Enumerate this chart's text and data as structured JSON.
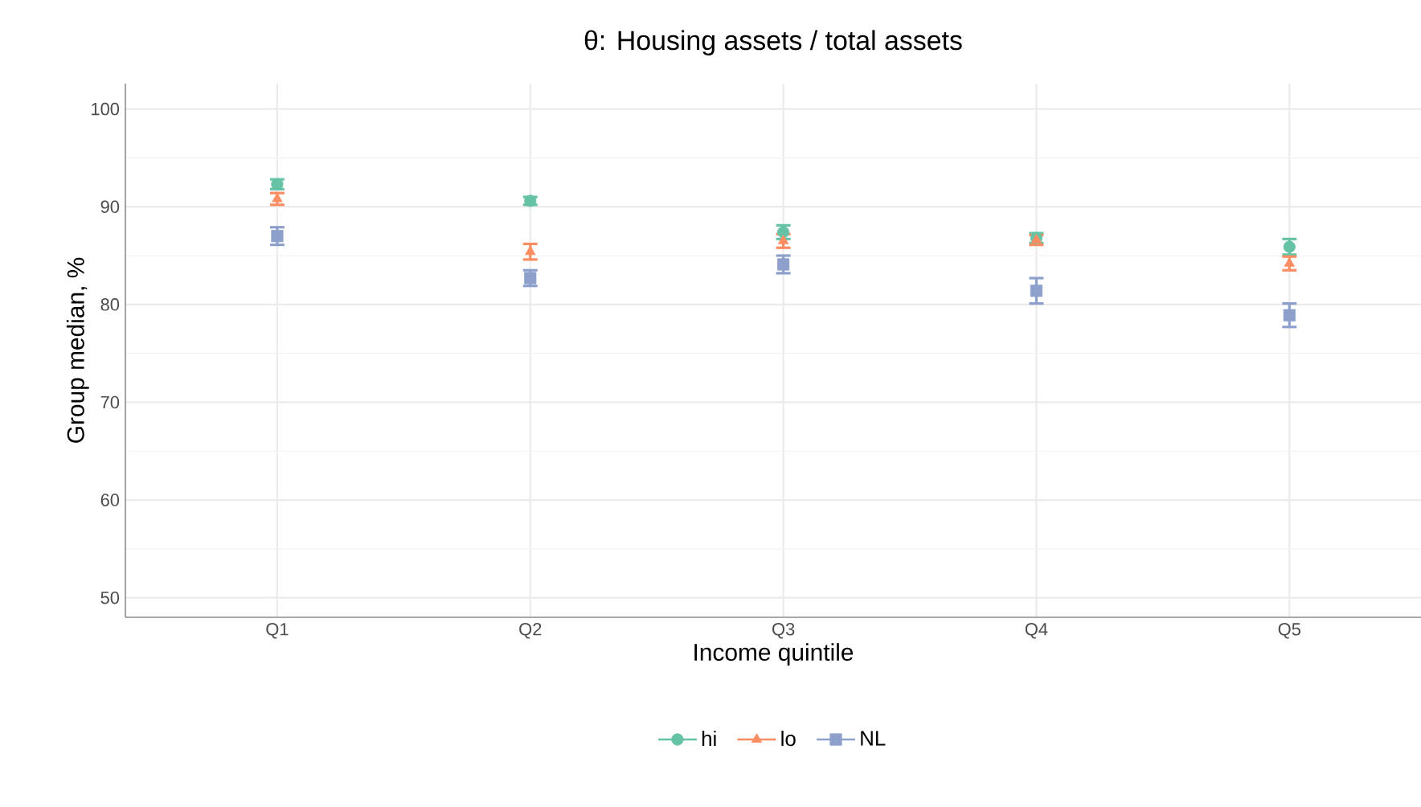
{
  "chart_data": {
    "type": "scatter",
    "title": "θ: Housing assets / total assets",
    "xlabel": "Income quintile",
    "ylabel": "Group median, %",
    "categories": [
      "Q1",
      "Q2",
      "Q3",
      "Q4",
      "Q5"
    ],
    "series": [
      {
        "name": "hi",
        "color": "#66c2a5",
        "marker": "circle",
        "values": [
          92.3,
          90.6,
          87.4,
          86.8,
          85.9
        ],
        "errors": [
          0.5,
          0.4,
          0.7,
          0.5,
          0.8
        ]
      },
      {
        "name": "lo",
        "color": "#fc8d62",
        "marker": "triangle",
        "values": [
          90.8,
          85.4,
          86.5,
          86.6,
          84.2
        ],
        "errors": [
          0.6,
          0.8,
          0.7,
          0.5,
          0.7
        ]
      },
      {
        "name": "NL",
        "color": "#8da0cb",
        "marker": "square",
        "values": [
          87.0,
          82.7,
          84.1,
          81.4,
          78.9
        ],
        "errors": [
          0.9,
          0.8,
          0.9,
          1.3,
          1.2
        ]
      }
    ],
    "ylim": [
      48,
      102.6
    ],
    "yticks": [
      50,
      60,
      70,
      80,
      90,
      100
    ],
    "grid": true,
    "legend": "bottom"
  }
}
